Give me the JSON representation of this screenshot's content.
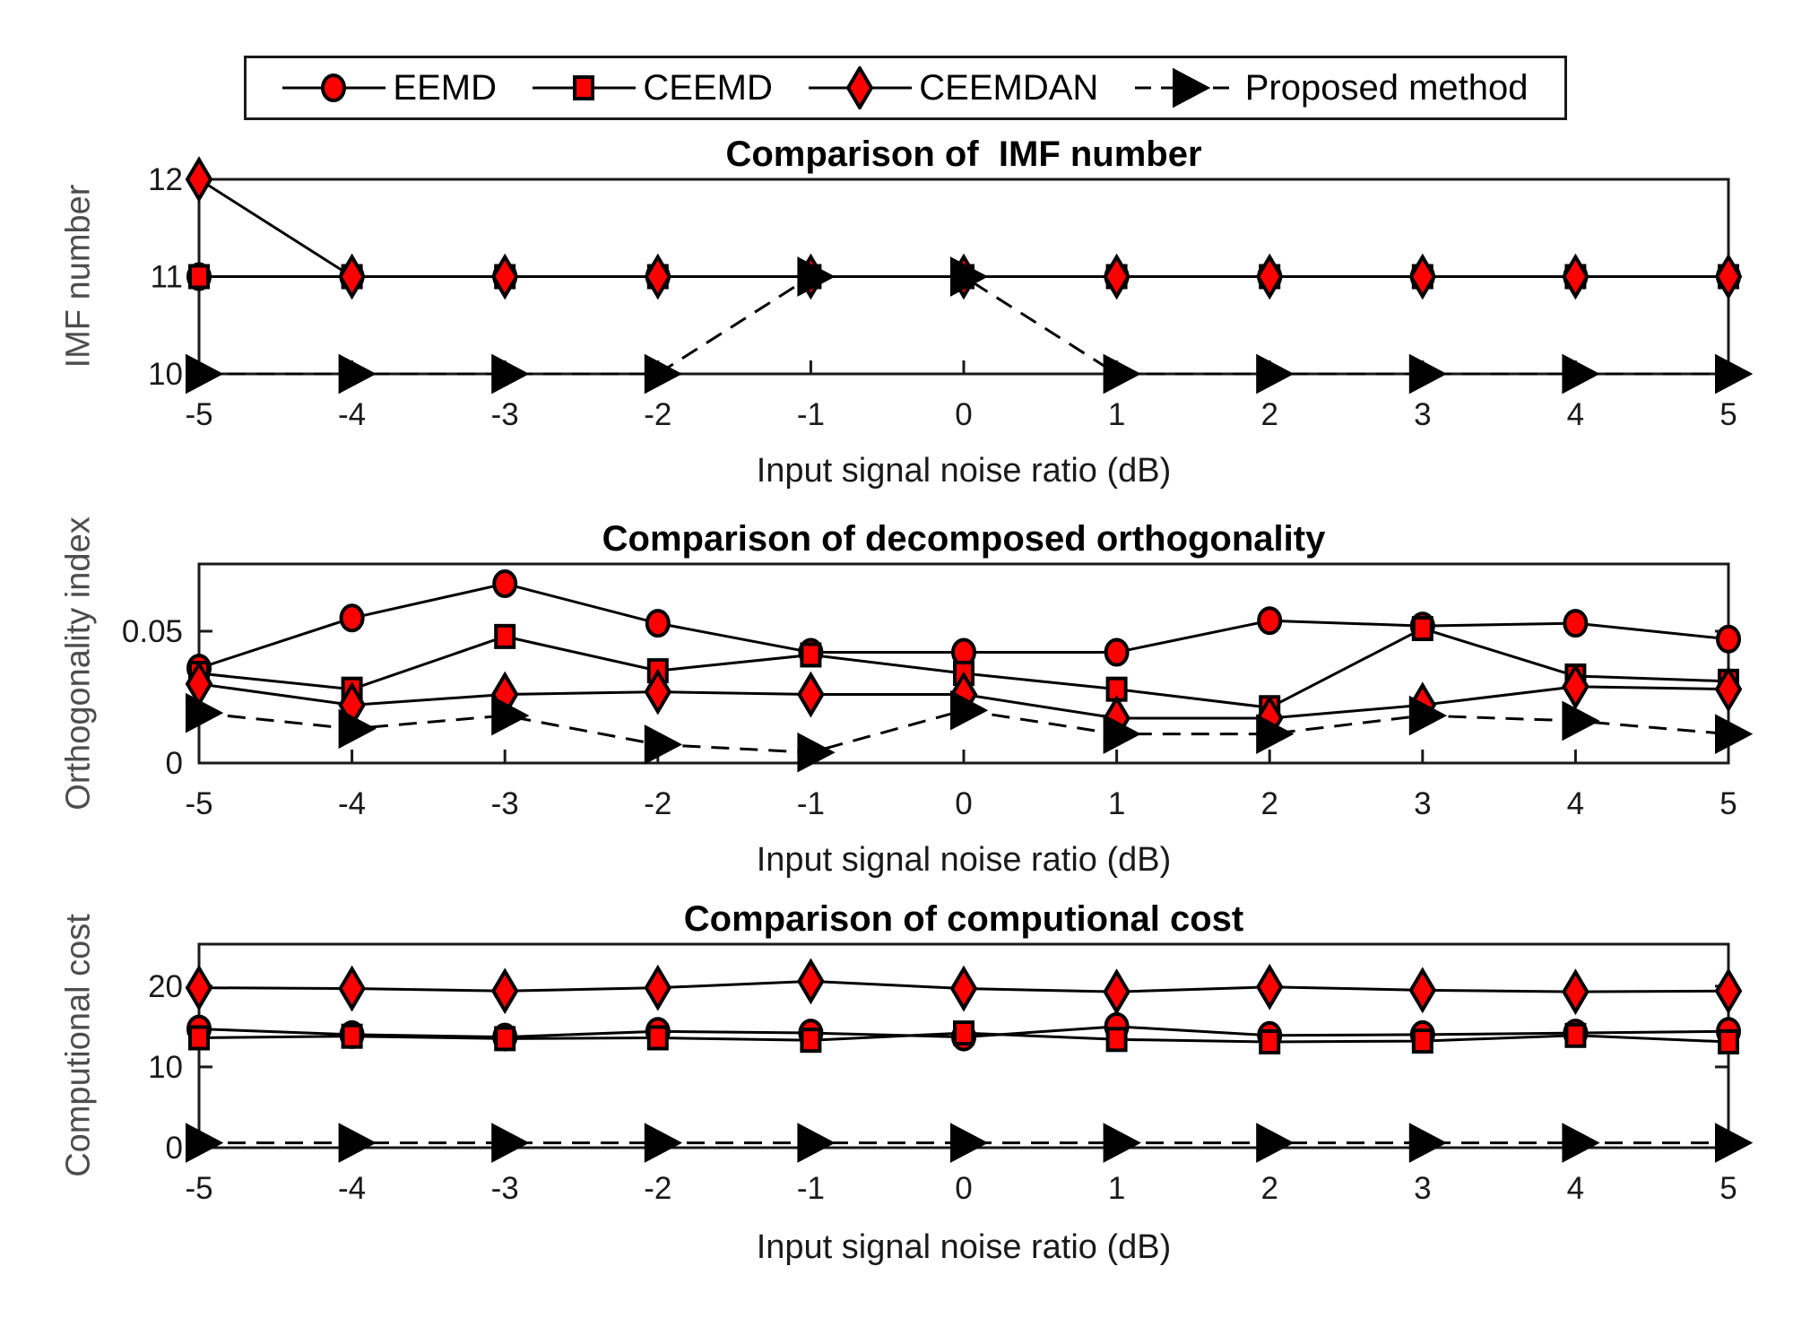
{
  "colors": {
    "marker_fill": "#ff0000",
    "line": "#000000",
    "spine": "#1a1a1a",
    "tick_label": "#1a1a1a",
    "axis_label": "#4d4d4d",
    "background": "#ffffff"
  },
  "legend": {
    "items": [
      {
        "label": "EEMD",
        "marker": "circle",
        "line_style": "solid"
      },
      {
        "label": "CEEMD",
        "marker": "square",
        "line_style": "solid"
      },
      {
        "label": "CEEMDAN",
        "marker": "diamond",
        "line_style": "solid"
      },
      {
        "label": "Proposed method",
        "marker": "triangle",
        "line_style": "dashed"
      }
    ]
  },
  "chart_data": [
    {
      "type": "line",
      "title": "Comparison of  IMF number",
      "xlabel": "Input signal noise ratio (dB)",
      "ylabel": "IMF number",
      "x": [
        -5,
        -4,
        -3,
        -2,
        -1,
        0,
        1,
        2,
        3,
        4,
        5
      ],
      "xtick_labels": [
        "-5",
        "-4",
        "-3",
        "-2",
        "-1",
        "0",
        "1",
        "2",
        "3",
        "4",
        "5"
      ],
      "ylim": [
        10,
        12
      ],
      "yticks": [
        10,
        11,
        12
      ],
      "ytick_labels": [
        "10",
        "11",
        "12"
      ],
      "grid": false,
      "legend_position": "above-figure",
      "series": [
        {
          "name": "EEMD",
          "marker": "circle",
          "dashed": false,
          "values": [
            11,
            11,
            11,
            11,
            11,
            11,
            11,
            11,
            11,
            11,
            11
          ]
        },
        {
          "name": "CEEMD",
          "marker": "square",
          "dashed": false,
          "values": [
            11,
            11,
            11,
            11,
            11,
            11,
            11,
            11,
            11,
            11,
            11
          ]
        },
        {
          "name": "CEEMDAN",
          "marker": "diamond",
          "dashed": false,
          "values": [
            12,
            11,
            11,
            11,
            11,
            11,
            11,
            11,
            11,
            11,
            11
          ]
        },
        {
          "name": "Proposed method",
          "marker": "triangle",
          "dashed": true,
          "values": [
            10,
            10,
            10,
            10,
            11,
            11,
            10,
            10,
            10,
            10,
            10
          ]
        }
      ]
    },
    {
      "type": "line",
      "title": "Comparison of decomposed orthogonality",
      "xlabel": "Input signal noise ratio (dB)",
      "ylabel": "Orthogonality index",
      "x": [
        -5,
        -4,
        -3,
        -2,
        -1,
        0,
        1,
        2,
        3,
        4,
        5
      ],
      "xtick_labels": [
        "-5",
        "-4",
        "-3",
        "-2",
        "-1",
        "0",
        "1",
        "2",
        "3",
        "4",
        "5"
      ],
      "ylim": [
        0,
        0.0755
      ],
      "yticks": [
        0,
        0.05
      ],
      "ytick_labels": [
        "0",
        "0.05"
      ],
      "grid": false,
      "series": [
        {
          "name": "EEMD",
          "marker": "circle",
          "dashed": false,
          "values": [
            0.036,
            0.055,
            0.068,
            0.053,
            0.042,
            0.042,
            0.042,
            0.054,
            0.052,
            0.053,
            0.047
          ]
        },
        {
          "name": "CEEMD",
          "marker": "square",
          "dashed": false,
          "values": [
            0.034,
            0.028,
            0.048,
            0.035,
            0.041,
            0.034,
            0.028,
            0.021,
            0.051,
            0.033,
            0.031
          ]
        },
        {
          "name": "CEEMDAN",
          "marker": "diamond",
          "dashed": false,
          "values": [
            0.03,
            0.022,
            0.026,
            0.027,
            0.026,
            0.026,
            0.017,
            0.017,
            0.022,
            0.029,
            0.028
          ]
        },
        {
          "name": "Proposed method",
          "marker": "triangle",
          "dashed": true,
          "values": [
            0.019,
            0.013,
            0.018,
            0.007,
            0.004,
            0.02,
            0.011,
            0.011,
            0.018,
            0.016,
            0.011
          ]
        }
      ]
    },
    {
      "type": "line",
      "title": "Comparison of computional cost",
      "xlabel": "Input signal noise ratio (dB)",
      "ylabel": "Computional cost",
      "x": [
        -5,
        -4,
        -3,
        -2,
        -1,
        0,
        1,
        2,
        3,
        4,
        5
      ],
      "xtick_labels": [
        "-5",
        "-4",
        "-3",
        "-2",
        "-1",
        "0",
        "1",
        "2",
        "3",
        "4",
        "5"
      ],
      "ylim": [
        0,
        25.2
      ],
      "yticks": [
        0,
        10,
        20
      ],
      "ytick_labels": [
        "0",
        "10",
        "20"
      ],
      "grid": false,
      "series": [
        {
          "name": "EEMD",
          "marker": "circle",
          "dashed": false,
          "values": [
            14.7,
            14.0,
            13.7,
            14.4,
            14.2,
            13.7,
            15.0,
            13.9,
            14.0,
            14.2,
            14.4
          ]
        },
        {
          "name": "CEEMD",
          "marker": "square",
          "dashed": false,
          "values": [
            13.6,
            13.8,
            13.5,
            13.6,
            13.3,
            14.2,
            13.4,
            13.1,
            13.2,
            13.9,
            13.1
          ]
        },
        {
          "name": "CEEMDAN",
          "marker": "diamond",
          "dashed": false,
          "values": [
            19.8,
            19.7,
            19.4,
            19.8,
            20.6,
            19.7,
            19.3,
            19.9,
            19.5,
            19.3,
            19.4
          ]
        },
        {
          "name": "Proposed method",
          "marker": "triangle",
          "dashed": true,
          "values": [
            0.6,
            0.6,
            0.6,
            0.6,
            0.6,
            0.6,
            0.6,
            0.6,
            0.6,
            0.6,
            0.6
          ]
        }
      ]
    }
  ]
}
